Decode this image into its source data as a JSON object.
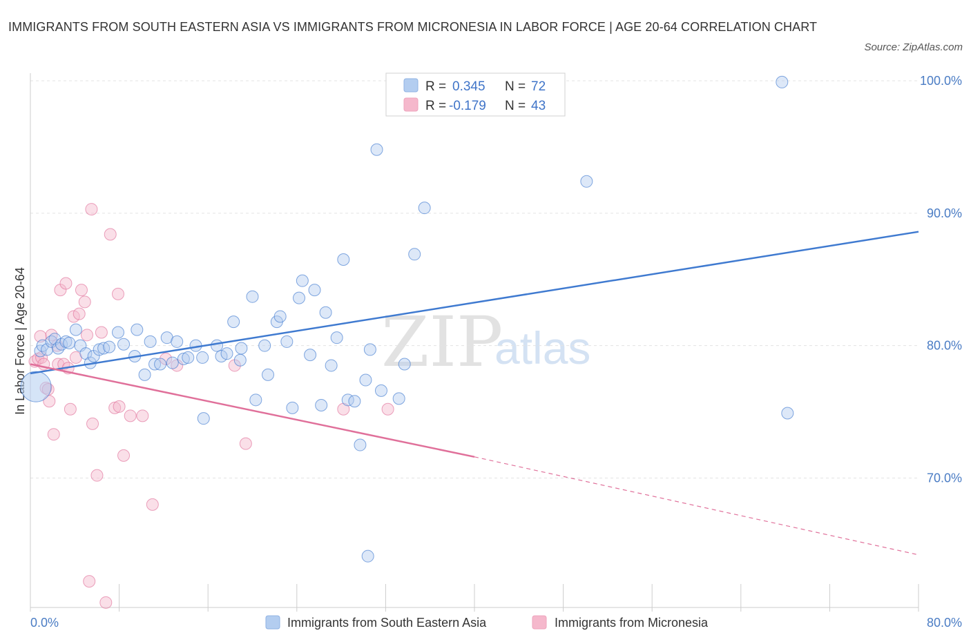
{
  "title": "IMMIGRANTS FROM SOUTH EASTERN ASIA VS IMMIGRANTS FROM MICRONESIA IN LABOR FORCE | AGE 20-64 CORRELATION CHART",
  "source": "Source: ZipAtlas.com",
  "watermark": {
    "zip": "ZIP",
    "atlas": "atlas"
  },
  "legend_top": {
    "rows": [
      {
        "r_label": "R =",
        "r_value": "0.345",
        "n_label": "N =",
        "n_value": "72"
      },
      {
        "r_label": "R =",
        "r_value": "-0.179",
        "n_label": "N =",
        "n_value": "43"
      }
    ]
  },
  "colors": {
    "blue": "#3f7ad0",
    "blue_fill": "#b3cdf0",
    "pink": "#e0709a",
    "pink_fill": "#f5b8cc",
    "grid": "#e3e3e3",
    "tick_text": "#4a7cc4"
  },
  "chart_data": {
    "type": "scatter",
    "title": "IMMIGRANTS FROM SOUTH EASTERN ASIA VS IMMIGRANTS FROM MICRONESIA IN LABOR FORCE | AGE 20-64 CORRELATION CHART",
    "xlabel": "",
    "ylabel": "In Labor Force | Age 20-64",
    "xlim": [
      0,
      80
    ],
    "ylim": [
      60,
      100
    ],
    "x_tick_labels": [
      "0.0%",
      "80.0%"
    ],
    "y_ticks": [
      70,
      80,
      90,
      100
    ],
    "y_tick_labels": [
      "70.0%",
      "80.0%",
      "90.0%",
      "100.0%"
    ],
    "grid": true,
    "legend_placement": "bottom",
    "series": [
      {
        "name": "Immigrants from South Eastern Asia",
        "color": "#3f7ad0",
        "trend": {
          "x": [
            0,
            80
          ],
          "y": [
            77.9,
            88.6
          ]
        },
        "points": [
          [
            0.5,
            76.9
          ],
          [
            0.9,
            79.6
          ],
          [
            1.1,
            80.0
          ],
          [
            1.5,
            79.7
          ],
          [
            1.9,
            80.3
          ],
          [
            2.2,
            80.5
          ],
          [
            2.5,
            79.8
          ],
          [
            2.8,
            80.1
          ],
          [
            3.2,
            80.3
          ],
          [
            3.5,
            80.2
          ],
          [
            4.1,
            81.2
          ],
          [
            4.5,
            80.0
          ],
          [
            5.0,
            79.4
          ],
          [
            5.4,
            78.7
          ],
          [
            5.7,
            79.2
          ],
          [
            6.2,
            79.7
          ],
          [
            6.6,
            79.8
          ],
          [
            7.1,
            79.9
          ],
          [
            7.9,
            81.0
          ],
          [
            8.4,
            80.1
          ],
          [
            9.4,
            79.2
          ],
          [
            9.6,
            81.2
          ],
          [
            10.3,
            77.8
          ],
          [
            10.8,
            80.3
          ],
          [
            11.2,
            78.6
          ],
          [
            11.7,
            78.6
          ],
          [
            12.3,
            80.6
          ],
          [
            12.8,
            78.7
          ],
          [
            13.2,
            80.3
          ],
          [
            13.8,
            79.0
          ],
          [
            14.2,
            79.1
          ],
          [
            14.9,
            80.0
          ],
          [
            15.5,
            79.1
          ],
          [
            15.6,
            74.5
          ],
          [
            16.8,
            80.0
          ],
          [
            17.2,
            79.2
          ],
          [
            17.7,
            79.4
          ],
          [
            18.3,
            81.8
          ],
          [
            18.9,
            78.9
          ],
          [
            19.0,
            79.8
          ],
          [
            20.0,
            83.7
          ],
          [
            20.3,
            75.9
          ],
          [
            21.1,
            80.0
          ],
          [
            21.4,
            77.8
          ],
          [
            22.2,
            81.8
          ],
          [
            22.5,
            82.2
          ],
          [
            23.1,
            80.3
          ],
          [
            23.6,
            75.3
          ],
          [
            24.2,
            83.6
          ],
          [
            24.5,
            84.9
          ],
          [
            25.2,
            79.3
          ],
          [
            25.6,
            84.2
          ],
          [
            26.2,
            75.5
          ],
          [
            26.6,
            82.5
          ],
          [
            27.1,
            78.5
          ],
          [
            27.6,
            80.6
          ],
          [
            28.2,
            86.5
          ],
          [
            28.6,
            75.9
          ],
          [
            29.2,
            75.8
          ],
          [
            29.7,
            72.5
          ],
          [
            30.2,
            77.4
          ],
          [
            30.6,
            79.7
          ],
          [
            31.2,
            94.8
          ],
          [
            31.6,
            76.6
          ],
          [
            33.2,
            76.0
          ],
          [
            33.7,
            78.6
          ],
          [
            34.6,
            86.9
          ],
          [
            35.5,
            90.4
          ],
          [
            50.1,
            92.4
          ],
          [
            67.7,
            99.9
          ],
          [
            68.2,
            74.9
          ],
          [
            30.4,
            64.1
          ]
        ]
      },
      {
        "name": "Immigrants from Micronesia",
        "color": "#e0709a",
        "trend": {
          "x": [
            0,
            40
          ],
          "y": [
            78.6,
            71.6
          ]
        },
        "trend_dashed": {
          "x": [
            40,
            80
          ],
          "y": [
            71.6,
            64.2
          ]
        },
        "points": [
          [
            0.4,
            78.8
          ],
          [
            0.7,
            79.0
          ],
          [
            1.0,
            79.1
          ],
          [
            1.2,
            78.6
          ],
          [
            1.4,
            76.8
          ],
          [
            1.6,
            76.7
          ],
          [
            1.7,
            75.8
          ],
          [
            1.9,
            80.8
          ],
          [
            2.1,
            73.3
          ],
          [
            2.4,
            80.0
          ],
          [
            2.5,
            78.6
          ],
          [
            2.7,
            84.2
          ],
          [
            3.0,
            78.6
          ],
          [
            3.2,
            84.7
          ],
          [
            3.4,
            78.3
          ],
          [
            3.6,
            75.2
          ],
          [
            3.9,
            82.2
          ],
          [
            4.1,
            79.1
          ],
          [
            4.4,
            82.4
          ],
          [
            4.6,
            84.2
          ],
          [
            4.9,
            83.3
          ],
          [
            5.1,
            80.8
          ],
          [
            5.3,
            62.2
          ],
          [
            5.5,
            90.3
          ],
          [
            5.6,
            74.1
          ],
          [
            6.0,
            70.2
          ],
          [
            6.4,
            81.0
          ],
          [
            6.8,
            60.6
          ],
          [
            7.2,
            88.4
          ],
          [
            7.6,
            75.3
          ],
          [
            7.9,
            83.9
          ],
          [
            8.0,
            75.4
          ],
          [
            8.4,
            71.7
          ],
          [
            9.0,
            74.7
          ],
          [
            10.1,
            74.7
          ],
          [
            11.0,
            68.0
          ],
          [
            12.2,
            79.0
          ],
          [
            13.2,
            78.5
          ],
          [
            18.4,
            78.5
          ],
          [
            19.4,
            72.6
          ],
          [
            28.2,
            75.2
          ],
          [
            32.2,
            75.2
          ],
          [
            0.9,
            80.7
          ]
        ]
      }
    ]
  }
}
